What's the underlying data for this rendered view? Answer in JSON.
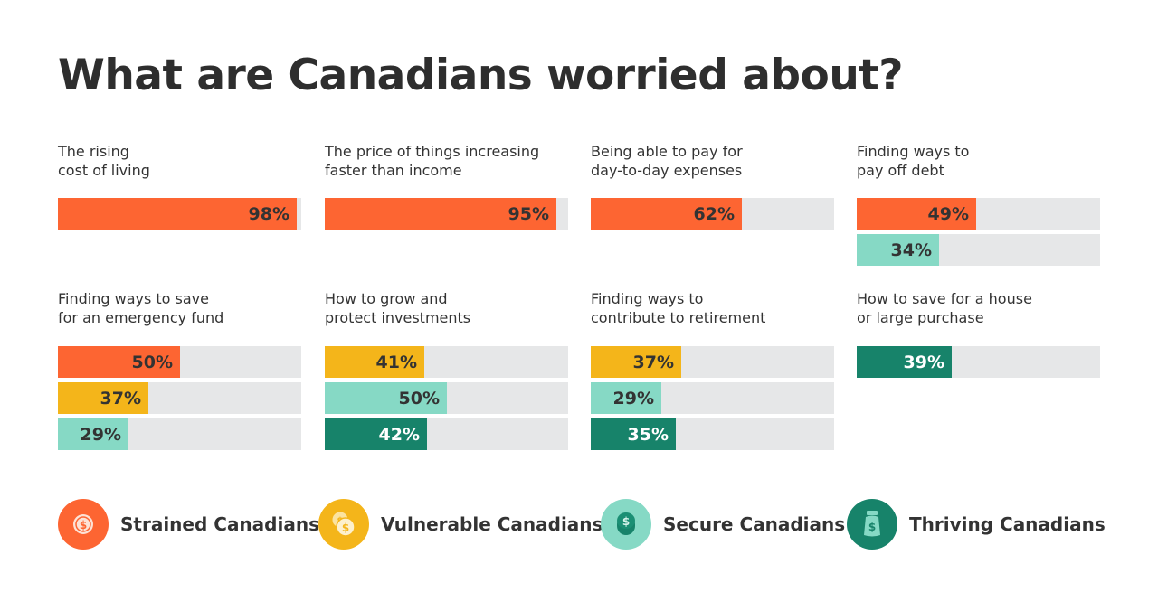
{
  "chart_data": {
    "type": "bar",
    "orientation": "horizontal",
    "title": "What are Canadians worried about?",
    "value_unit": "%",
    "xlim": [
      0,
      100
    ],
    "series_names": [
      "Strained Canadians",
      "Vulnerable Canadians",
      "Secure Canadians",
      "Thriving Canadians"
    ],
    "colors": {
      "Strained Canadians": "#fd6532",
      "Vulnerable Canadians": "#f4b51a",
      "Secure Canadians": "#86d9c5",
      "Thriving Canadians": "#17836a"
    },
    "panels": [
      {
        "label": "The rising\ncost of living",
        "bars": [
          {
            "series": "Strained Canadians",
            "value": 98
          }
        ]
      },
      {
        "label": "The price of things increasing\nfaster than income",
        "bars": [
          {
            "series": "Strained Canadians",
            "value": 95
          }
        ]
      },
      {
        "label": "Being able to pay for\nday-to-day expenses",
        "bars": [
          {
            "series": "Strained Canadians",
            "value": 62
          }
        ]
      },
      {
        "label": "Finding ways to\npay off debt",
        "bars": [
          {
            "series": "Strained Canadians",
            "value": 49
          },
          {
            "series": "Secure Canadians",
            "value": 34
          }
        ]
      },
      {
        "label": "Finding ways to save\nfor an emergency fund",
        "bars": [
          {
            "series": "Strained Canadians",
            "value": 50
          },
          {
            "series": "Vulnerable Canadians",
            "value": 37
          },
          {
            "series": "Secure Canadians",
            "value": 29
          }
        ]
      },
      {
        "label": "How to grow and\nprotect investments",
        "bars": [
          {
            "series": "Vulnerable Canadians",
            "value": 41
          },
          {
            "series": "Secure Canadians",
            "value": 50
          },
          {
            "series": "Thriving Canadians",
            "value": 42
          }
        ]
      },
      {
        "label": "Finding ways to\ncontribute to retirement",
        "bars": [
          {
            "series": "Vulnerable Canadians",
            "value": 37
          },
          {
            "series": "Secure Canadians",
            "value": 29
          },
          {
            "series": "Thriving Canadians",
            "value": 35
          }
        ]
      },
      {
        "label": "How to save for a house\nor large purchase",
        "bars": [
          {
            "series": "Thriving Canadians",
            "value": 39
          }
        ]
      }
    ]
  },
  "legend": [
    {
      "label": "Strained Canadians",
      "icon": "dollar-coin-icon",
      "color": "#fd6532"
    },
    {
      "label": "Vulnerable Canadians",
      "icon": "stacked-coins-icon",
      "color": "#f4b51a"
    },
    {
      "label": "Secure Canadians",
      "icon": "coin-stack-icon",
      "color": "#86d9c5"
    },
    {
      "label": "Thriving Canadians",
      "icon": "money-jar-icon",
      "color": "#17836a"
    }
  ],
  "track_color": "#e6e7e8",
  "text_color_dark": "#333333",
  "text_color_light": "#ffffff"
}
